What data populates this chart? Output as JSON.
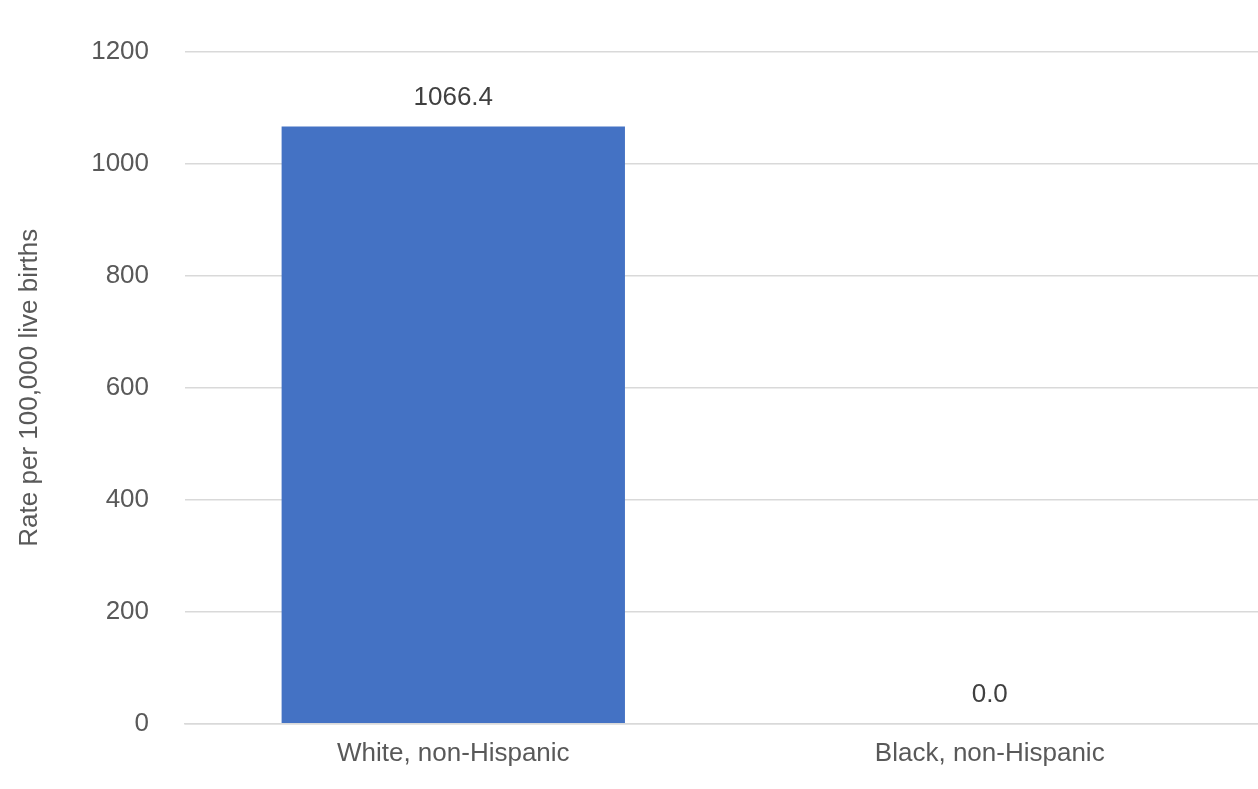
{
  "chart_data": {
    "type": "bar",
    "ylabel": "Rate per 100,000 live births",
    "categories": [
      "White, non-Hispanic",
      "Black, non-Hispanic"
    ],
    "values": [
      1066.4,
      0
    ],
    "value_labels": [
      "1066.4",
      "0.0"
    ],
    "color": "#4472c4",
    "ylim": [
      0,
      1200
    ],
    "yticks": [
      0,
      200,
      400,
      600,
      800,
      1000,
      1200
    ],
    "grid": "y"
  }
}
